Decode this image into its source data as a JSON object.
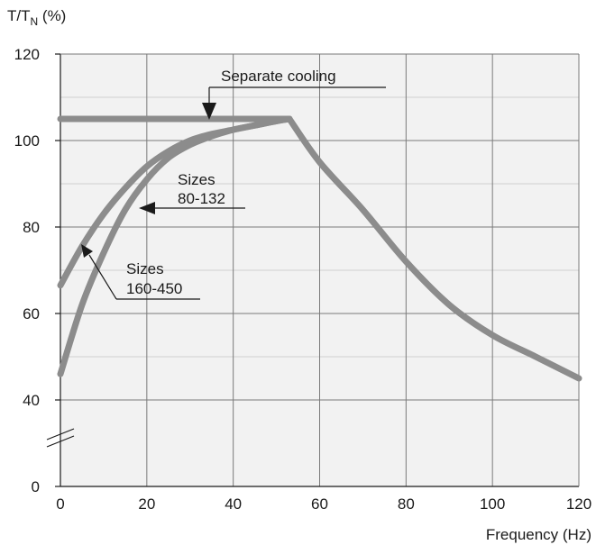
{
  "chart_data": {
    "type": "line",
    "ylabel_main": "T/T",
    "ylabel_sub": "N",
    "ylabel_unit": "(%)",
    "xlabel": "Frequency (Hz)",
    "x_ticks": [
      "0",
      "20",
      "40",
      "60",
      "80",
      "100",
      "120"
    ],
    "y_ticks": [
      "0",
      "40",
      "60",
      "80",
      "100",
      "120"
    ],
    "xlim": [
      0,
      120
    ],
    "ylim": [
      0,
      120
    ],
    "grid": true,
    "series": [
      {
        "name": "Separate cooling",
        "x": [
          0,
          53
        ],
        "y": [
          105,
          105
        ]
      },
      {
        "name": "Sizes 80-132",
        "x": [
          0,
          5,
          10,
          15,
          20,
          25,
          30,
          35,
          40,
          45,
          50,
          53
        ],
        "y": [
          46,
          62,
          74,
          84,
          91,
          96,
          99,
          101,
          102.5,
          103.5,
          104.5,
          105
        ]
      },
      {
        "name": "Sizes 160-450",
        "x": [
          0,
          5,
          10,
          15,
          20,
          25,
          30,
          35,
          40,
          45,
          50,
          53
        ],
        "y": [
          66.5,
          75.5,
          83,
          89,
          94,
          97.5,
          100,
          101.5,
          102.5,
          103.5,
          104.5,
          105
        ]
      },
      {
        "name": "",
        "x": [
          53,
          60,
          70,
          80,
          90,
          100,
          110,
          120
        ],
        "y": [
          105,
          95,
          84,
          72,
          62,
          55,
          50,
          45
        ]
      }
    ],
    "annotations": [
      {
        "text": "Separate cooling"
      },
      {
        "line1": "Sizes",
        "line2": "80-132"
      },
      {
        "line1": "Sizes",
        "line2": "160-450"
      }
    ]
  },
  "colors": {
    "grid": "#7a7a7a",
    "plot_background": "#f2f2f2",
    "curve": "#8c8c8c",
    "text": "#1a1a1a"
  }
}
